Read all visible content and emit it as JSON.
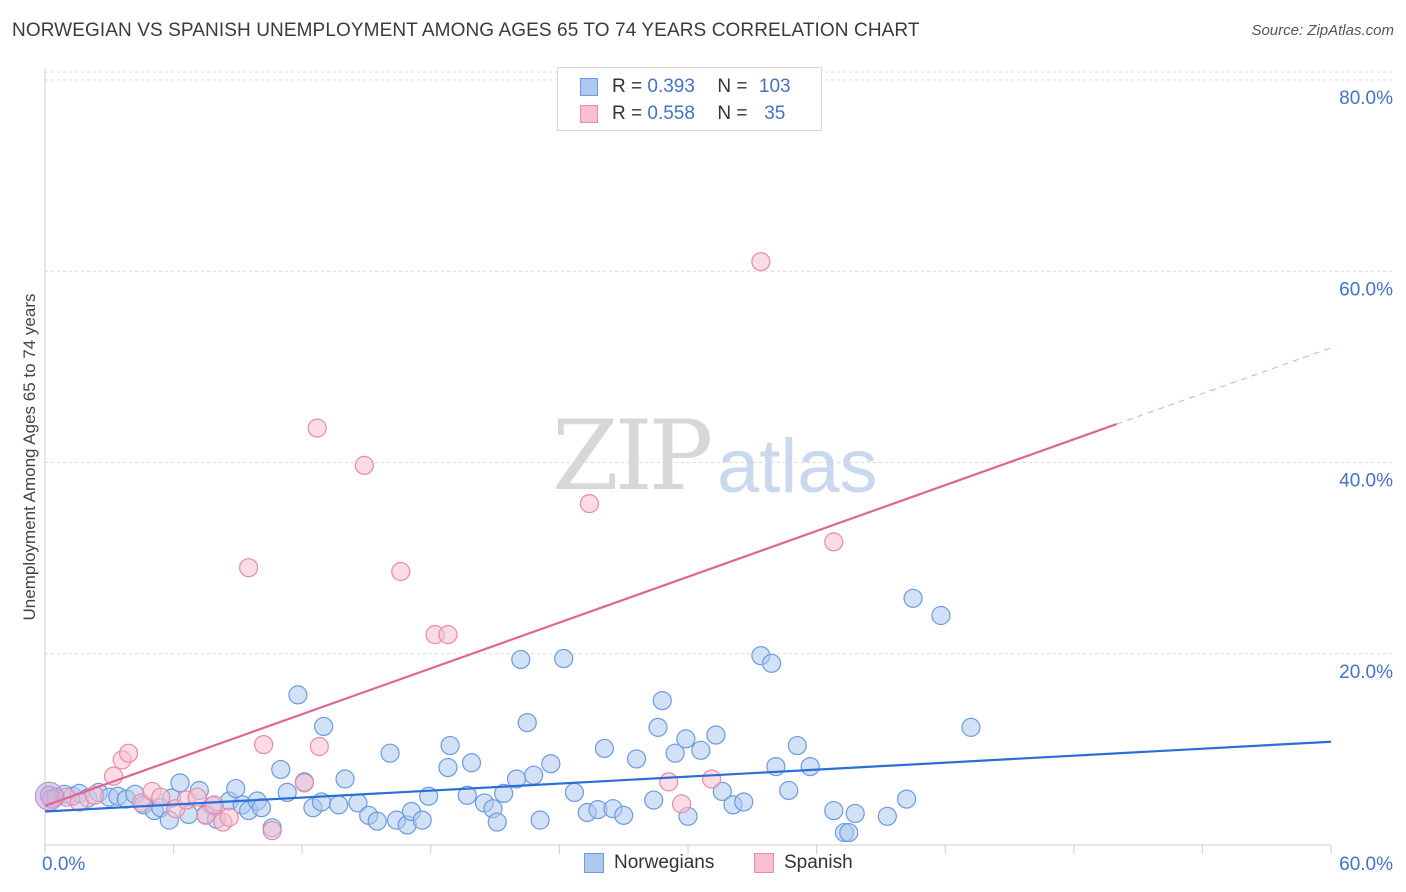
{
  "title": "NORWEGIAN VS SPANISH UNEMPLOYMENT AMONG AGES 65 TO 74 YEARS CORRELATION CHART",
  "source": "Source: ZipAtlas.com",
  "watermark": {
    "zip": "ZIP",
    "atlas": "atlas"
  },
  "legend": {
    "r_label": "R =",
    "n_label": "N =",
    "series": [
      {
        "name": "Norwegians",
        "r": "0.393",
        "n": "103",
        "fill": "#aec8ee",
        "stroke": "#6b9be0"
      },
      {
        "name": "Spanish",
        "r": "0.558",
        "n": "35",
        "fill": "#f7bfd0",
        "stroke": "#e88aa8"
      }
    ]
  },
  "chart_data": {
    "type": "scatter",
    "title": "NORWEGIAN VS SPANISH UNEMPLOYMENT AMONG AGES 65 TO 74 YEARS CORRELATION CHART",
    "xlabel": "",
    "ylabel": "Unemployment Among Ages 65 to 74 years",
    "xlim": [
      0,
      60
    ],
    "ylim": [
      0,
      80
    ],
    "x_tick_labels": [
      "0.0%",
      "60.0%"
    ],
    "y_tick_labels": [
      "20.0%",
      "40.0%",
      "60.0%",
      "80.0%"
    ],
    "y_ticks": [
      20,
      40,
      60,
      80
    ],
    "series": [
      {
        "name": "Norwegians",
        "color": "#6b9be0",
        "trend": {
          "x0": 0,
          "y0": 3.5,
          "x1": 60,
          "y1": 10.8
        },
        "points": [
          [
            0.2,
            5.2
          ],
          [
            0.5,
            5.0
          ],
          [
            0.9,
            5.3
          ],
          [
            1.3,
            5.1
          ],
          [
            1.6,
            5.4
          ],
          [
            2.0,
            4.9
          ],
          [
            2.5,
            5.5
          ],
          [
            3.0,
            5.0
          ],
          [
            3.4,
            5.1
          ],
          [
            3.8,
            4.8
          ],
          [
            4.2,
            5.3
          ],
          [
            4.6,
            4.2
          ],
          [
            5.1,
            3.6
          ],
          [
            5.4,
            3.9
          ],
          [
            5.8,
            2.6
          ],
          [
            5.9,
            4.9
          ],
          [
            6.3,
            6.5
          ],
          [
            6.7,
            3.2
          ],
          [
            7.2,
            5.7
          ],
          [
            7.5,
            3.2
          ],
          [
            7.8,
            4.1
          ],
          [
            8.0,
            2.7
          ],
          [
            8.6,
            4.6
          ],
          [
            8.9,
            5.9
          ],
          [
            9.2,
            4.2
          ],
          [
            9.5,
            3.6
          ],
          [
            9.9,
            4.6
          ],
          [
            10.1,
            3.9
          ],
          [
            10.6,
            1.8
          ],
          [
            11.0,
            7.9
          ],
          [
            11.3,
            5.5
          ],
          [
            11.8,
            15.7
          ],
          [
            12.1,
            6.6
          ],
          [
            12.5,
            3.9
          ],
          [
            12.9,
            4.5
          ],
          [
            13.0,
            12.4
          ],
          [
            13.7,
            4.2
          ],
          [
            14.0,
            6.9
          ],
          [
            14.6,
            4.4
          ],
          [
            15.1,
            3.1
          ],
          [
            15.5,
            2.5
          ],
          [
            16.1,
            9.6
          ],
          [
            16.4,
            2.6
          ],
          [
            16.9,
            2.1
          ],
          [
            17.1,
            3.5
          ],
          [
            17.6,
            2.6
          ],
          [
            17.9,
            5.1
          ],
          [
            18.8,
            8.1
          ],
          [
            18.9,
            10.4
          ],
          [
            19.7,
            5.2
          ],
          [
            19.9,
            8.6
          ],
          [
            20.5,
            4.4
          ],
          [
            20.9,
            3.8
          ],
          [
            21.1,
            2.4
          ],
          [
            21.4,
            5.4
          ],
          [
            22.0,
            6.9
          ],
          [
            22.2,
            19.4
          ],
          [
            22.5,
            12.8
          ],
          [
            22.8,
            7.3
          ],
          [
            23.1,
            2.6
          ],
          [
            23.6,
            8.5
          ],
          [
            24.2,
            19.5
          ],
          [
            24.7,
            5.5
          ],
          [
            25.3,
            3.4
          ],
          [
            25.8,
            3.7
          ],
          [
            26.1,
            10.1
          ],
          [
            26.5,
            3.8
          ],
          [
            27.0,
            3.1
          ],
          [
            27.6,
            9.0
          ],
          [
            28.4,
            4.7
          ],
          [
            28.6,
            12.3
          ],
          [
            28.8,
            15.1
          ],
          [
            29.4,
            9.6
          ],
          [
            29.9,
            11.1
          ],
          [
            30.0,
            3.0
          ],
          [
            30.6,
            9.9
          ],
          [
            31.3,
            11.5
          ],
          [
            31.6,
            5.6
          ],
          [
            32.1,
            4.2
          ],
          [
            32.6,
            4.5
          ],
          [
            33.4,
            19.8
          ],
          [
            33.9,
            19.0
          ],
          [
            34.1,
            8.2
          ],
          [
            34.7,
            5.7
          ],
          [
            35.1,
            10.4
          ],
          [
            35.7,
            8.2
          ],
          [
            36.8,
            3.6
          ],
          [
            37.3,
            1.3
          ],
          [
            37.5,
            1.3
          ],
          [
            37.8,
            3.3
          ],
          [
            39.3,
            3.0
          ],
          [
            40.2,
            4.8
          ],
          [
            40.5,
            25.8
          ],
          [
            41.8,
            24.0
          ],
          [
            43.2,
            12.3
          ]
        ]
      },
      {
        "name": "Spanish",
        "color": "#e88aa8",
        "trend": {
          "x0": 0,
          "y0": 4.1,
          "x1": 60,
          "y1": 52.0,
          "solid_until_x": 50
        },
        "points": [
          [
            0.3,
            4.8
          ],
          [
            1.0,
            5.0
          ],
          [
            1.6,
            4.5
          ],
          [
            2.3,
            5.2
          ],
          [
            3.2,
            7.2
          ],
          [
            3.6,
            8.9
          ],
          [
            3.9,
            9.6
          ],
          [
            4.5,
            4.4
          ],
          [
            5.0,
            5.6
          ],
          [
            5.4,
            5.0
          ],
          [
            6.1,
            3.8
          ],
          [
            6.6,
            4.7
          ],
          [
            7.1,
            5.0
          ],
          [
            7.5,
            3.1
          ],
          [
            7.9,
            4.2
          ],
          [
            8.3,
            2.4
          ],
          [
            8.6,
            2.9
          ],
          [
            9.5,
            29.0
          ],
          [
            10.2,
            10.5
          ],
          [
            10.6,
            1.5
          ],
          [
            12.1,
            6.5
          ],
          [
            12.7,
            43.6
          ],
          [
            12.8,
            10.3
          ],
          [
            14.9,
            39.7
          ],
          [
            16.6,
            28.6
          ],
          [
            18.2,
            22.0
          ],
          [
            18.8,
            22.0
          ],
          [
            25.4,
            35.7
          ],
          [
            29.1,
            6.6
          ],
          [
            29.7,
            4.3
          ],
          [
            31.1,
            6.9
          ],
          [
            33.4,
            61.0
          ],
          [
            36.8,
            31.7
          ]
        ]
      }
    ]
  }
}
